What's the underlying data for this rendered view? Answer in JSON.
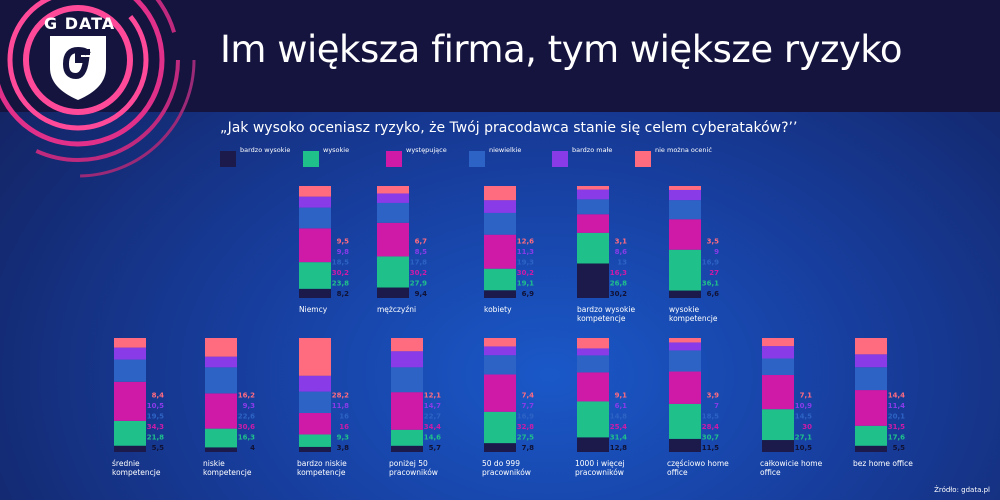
{
  "title": "Im większa firma, tym większe ryzyko",
  "brand": "G DATA",
  "question": "„Jak wysoko oceniasz ryzyko, że Twój pracodawca stanie się celem cyberataków?’’",
  "source": "Źródło: gdata.pl",
  "colors": {
    "header_bg": "#15143f",
    "bardzo_wysokie": "#1b1a4a",
    "wysokie": "#1fc08a",
    "wystepujace": "#cf1aa8",
    "niewielkie": "#2d63c4",
    "bardzo_male": "#8a3be8",
    "nie_mozna": "#ff6b7f",
    "arc": "#ff4a9a"
  },
  "legend": [
    {
      "label": "bardzo wysokie",
      "color_key": "bardzo_wysokie"
    },
    {
      "label": "wysokie",
      "color_key": "wysokie"
    },
    {
      "label": "występujące",
      "color_key": "wystepujace"
    },
    {
      "label": "niewielkie",
      "color_key": "niewielkie"
    },
    {
      "label": "bardzo małe",
      "color_key": "bardzo_male"
    },
    {
      "label": "nie można ocenić",
      "color_key": "nie_mozna"
    }
  ],
  "chart_data": {
    "type": "bar",
    "stacked": true,
    "unit": "%",
    "series_order": [
      "bardzo wysokie",
      "wysokie",
      "występujące",
      "niewielkie",
      "bardzo małe",
      "nie można ocenić"
    ],
    "categories": [
      {
        "label": "Niemcy",
        "values": [
          8.2,
          23.8,
          30.2,
          18.5,
          9.8,
          9.5
        ]
      },
      {
        "label": "mężczyźni",
        "values": [
          9.4,
          27.9,
          30.2,
          17.8,
          8.5,
          6.7
        ]
      },
      {
        "label": "kobiety",
        "values": [
          6.9,
          19.1,
          30.2,
          19.3,
          11.3,
          12.6
        ]
      },
      {
        "label": "bardzo wysokie kompetencje",
        "values": [
          30.2,
          26.8,
          16.3,
          13.0,
          8.6,
          3.1
        ]
      },
      {
        "label": "wysokie kompetencje",
        "values": [
          6.6,
          36.1,
          27.0,
          16.9,
          9.0,
          3.5
        ]
      },
      {
        "label": "średnie kompetencje",
        "values": [
          5.5,
          21.8,
          34.3,
          19.5,
          10.5,
          8.4
        ]
      },
      {
        "label": "niskie kompetencje",
        "values": [
          4.0,
          16.3,
          30.6,
          22.6,
          9.3,
          16.2
        ]
      },
      {
        "label": "bardzo niskie kompetencje",
        "values": [
          3.8,
          9.3,
          16.0,
          16.0,
          11.8,
          28.2
        ]
      },
      {
        "label": "poniżej 50 pracowników",
        "values": [
          5.7,
          14.6,
          34.4,
          22.7,
          14.7,
          12.1
        ]
      },
      {
        "label": "50 do 999 pracowników",
        "values": [
          7.8,
          27.5,
          32.8,
          16.9,
          7.7,
          7.4
        ]
      },
      {
        "label": "1000 i więcej pracowników",
        "values": [
          12.8,
          31.4,
          25.4,
          14.8,
          6.1,
          9.1
        ]
      },
      {
        "label": "częściowo home office",
        "values": [
          11.5,
          30.7,
          28.4,
          18.5,
          7.0,
          3.9
        ]
      },
      {
        "label": "całkowicie home office",
        "values": [
          10.5,
          27.1,
          30.0,
          14.5,
          10.9,
          7.1
        ]
      },
      {
        "label": "bez home office",
        "values": [
          5.5,
          17.6,
          31.5,
          20.1,
          11.4,
          14.4
        ]
      }
    ]
  }
}
